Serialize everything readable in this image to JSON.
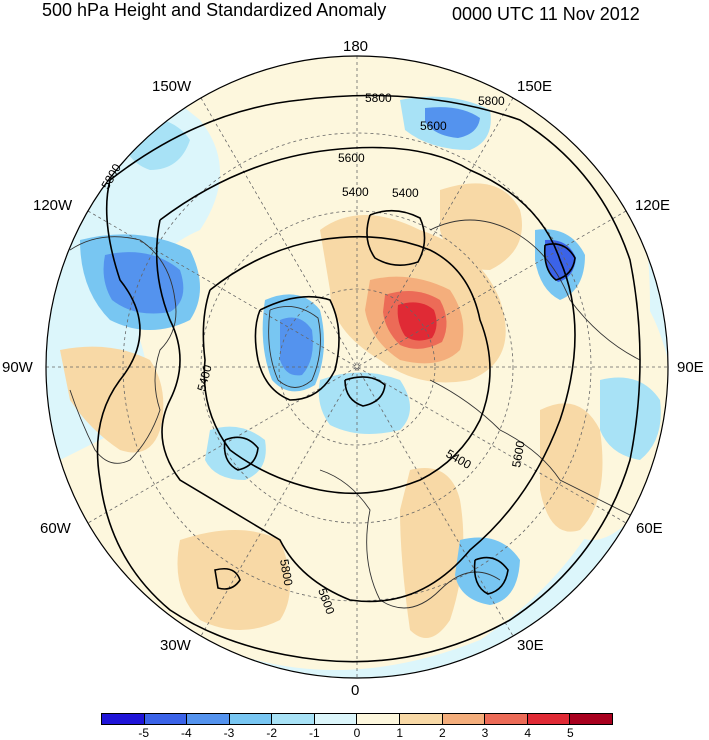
{
  "title": "500 hPa Height and Standardized Anomaly",
  "valid_time": "0000 UTC 11 Nov 2012",
  "longitude_labels": {
    "top": "180",
    "bottom": "0",
    "w150": "150W",
    "e150": "150E",
    "w120": "120W",
    "e120": "120E",
    "w90": "90W",
    "e90": "90E",
    "w60": "60W",
    "e60": "60E",
    "w30": "30W",
    "e30": "30E"
  },
  "contour_labels": {
    "c1": "5800",
    "c2": "5800",
    "c3": "5600",
    "c4": "5600",
    "c5": "5400",
    "c6": "5400",
    "c7": "5800",
    "c8": "5400",
    "c9": "5400",
    "c10": "5600",
    "c11": "5800",
    "c12": "5600"
  },
  "colorbar": {
    "colors": [
      "#1f14d8",
      "#3b63e8",
      "#5493ee",
      "#78c6f2",
      "#a8e2f6",
      "#dcf6fb",
      "#fdf7dd",
      "#f8d9a6",
      "#f4ae7c",
      "#ec6b57",
      "#e02a35",
      "#a8001e"
    ],
    "labels": [
      "-5",
      "-4",
      "-3",
      "-2",
      "-1",
      "0",
      "1",
      "2",
      "3",
      "4",
      "5"
    ]
  }
}
